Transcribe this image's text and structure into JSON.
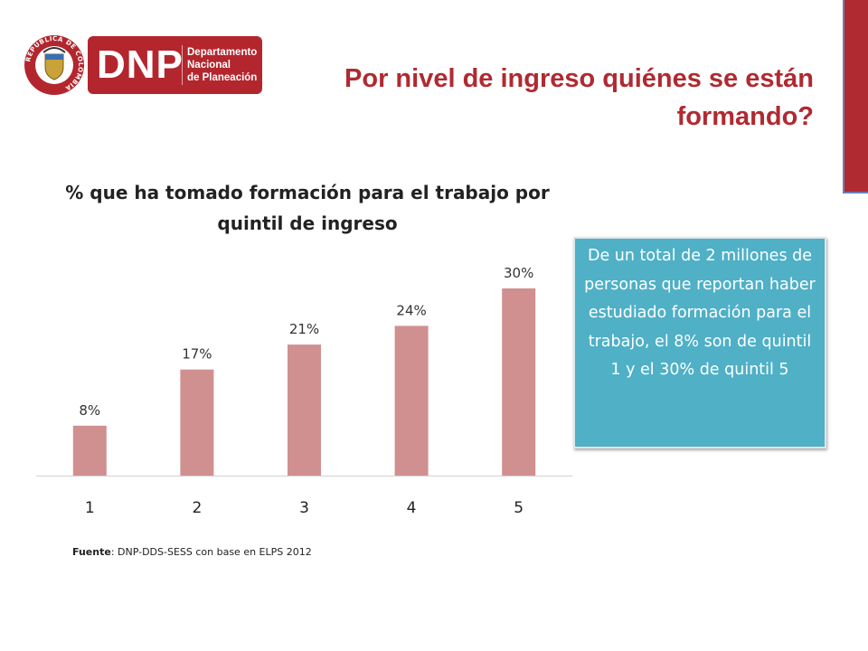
{
  "header": {
    "title": "Por nivel de ingreso quiénes se están formando?",
    "logo_text": "DNP",
    "logo_subtext": "Departamento\nNacional\nde Planeación",
    "seal_icon": "colombia-coat-of-arms-icon",
    "seal_text": "REPÚBLICA DE COLOMBIA"
  },
  "colors": {
    "accent": "#b02a31",
    "bar": "#d09090",
    "callout": "#4fb0c6"
  },
  "chart_data": {
    "type": "bar",
    "title": "% que ha tomado formación para el trabajo por quintil de ingreso",
    "categories": [
      "1",
      "2",
      "3",
      "4",
      "5"
    ],
    "values": [
      8,
      17,
      21,
      24,
      30
    ],
    "value_labels": [
      "8%",
      "17%",
      "21%",
      "24%",
      "30%"
    ],
    "xlabel": "",
    "ylabel": "",
    "ylim": [
      0,
      35
    ],
    "grid": false,
    "legend": "none"
  },
  "callout": {
    "text": "De un total de 2 millones de personas que reportan haber estudiado formación para el trabajo, el 8% son de quintil 1 y el 30% de quintil 5"
  },
  "source": {
    "label": "Fuente",
    "text": ": DNP-DDS-SESS con base en ELPS 2012"
  }
}
